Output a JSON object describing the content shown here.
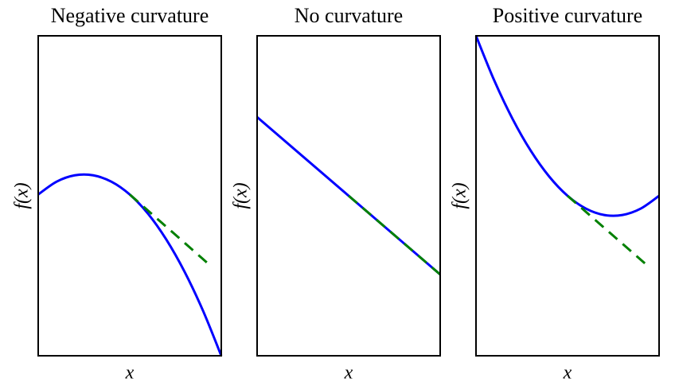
{
  "chart_data": [
    {
      "type": "line",
      "title": "Negative curvature",
      "x_label": "x",
      "y_label": "f(x)",
      "xlim": [
        0,
        1
      ],
      "ylim": [
        0,
        1
      ],
      "series": [
        {
          "color": "#0000ff",
          "linestyle": "solid",
          "x": [
            0,
            0.1,
            0.2,
            0.3,
            0.4,
            0.5,
            0.6,
            0.7,
            0.8,
            0.9,
            1.0
          ],
          "values": [
            0.504,
            0.544,
            0.564,
            0.564,
            0.544,
            0.504,
            0.444,
            0.363,
            0.262,
            0.141,
            0.0
          ]
        },
        {
          "color": "#008000",
          "linestyle": "dashed",
          "x": [
            0.5,
            0.95
          ],
          "values": [
            0.504,
            0.277
          ]
        }
      ]
    },
    {
      "type": "line",
      "title": "No curvature",
      "x_label": "x",
      "y_label": "f(x)",
      "xlim": [
        0,
        1
      ],
      "ylim": [
        0,
        1
      ],
      "series": [
        {
          "color": "#0000ff",
          "linestyle": "solid",
          "x": [
            0,
            1
          ],
          "values": [
            0.746,
            0.254
          ]
        },
        {
          "color": "#008000",
          "linestyle": "dashed",
          "x": [
            0.5,
            1
          ],
          "values": [
            0.5,
            0.254
          ]
        }
      ]
    },
    {
      "type": "line",
      "title": "Positive curvature",
      "x_label": "x",
      "y_label": "f(x)",
      "xlim": [
        0,
        1
      ],
      "ylim": [
        0,
        1
      ],
      "series": [
        {
          "color": "#0000ff",
          "linestyle": "solid",
          "x": [
            0,
            0.1,
            0.2,
            0.3,
            0.4,
            0.5,
            0.6,
            0.7,
            0.8,
            0.9,
            1.0
          ],
          "values": [
            1.0,
            0.86,
            0.74,
            0.64,
            0.56,
            0.5,
            0.46,
            0.44,
            0.44,
            0.46,
            0.5
          ]
        },
        {
          "color": "#008000",
          "linestyle": "dashed",
          "x": [
            0.5,
            0.95
          ],
          "values": [
            0.5,
            0.275
          ]
        }
      ]
    }
  ]
}
